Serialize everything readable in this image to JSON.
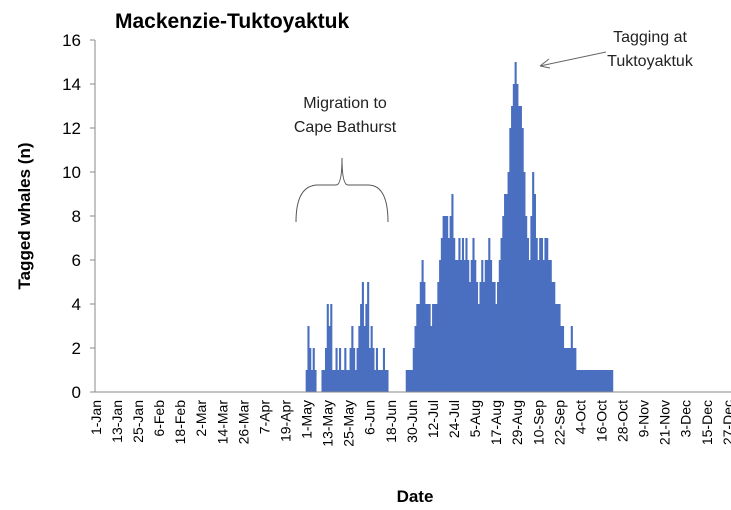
{
  "chart_data": {
    "type": "bar",
    "title": "Mackenzie-Tuktoyaktuk",
    "x_label": "Date",
    "y_label": "Tagged whales (n)",
    "annotations": [
      {
        "lines": [
          "Migration to",
          "Cape Bathurst"
        ]
      },
      {
        "lines": [
          "Tagging at",
          "Tuktoyaktuk"
        ]
      }
    ],
    "color": "#4a6fc0",
    "ylim": [
      0,
      16
    ],
    "yticks": [
      0,
      2,
      4,
      6,
      8,
      10,
      12,
      14,
      16
    ],
    "categories": [
      "1-Jan",
      null,
      null,
      null,
      null,
      null,
      null,
      null,
      null,
      null,
      null,
      null,
      "13-Jan",
      null,
      null,
      null,
      null,
      null,
      null,
      null,
      null,
      null,
      null,
      null,
      "25-Jan",
      null,
      null,
      null,
      null,
      null,
      null,
      null,
      null,
      null,
      null,
      null,
      "6-Feb",
      null,
      null,
      null,
      null,
      null,
      null,
      null,
      null,
      null,
      null,
      null,
      "18-Feb",
      null,
      null,
      null,
      null,
      null,
      null,
      null,
      null,
      null,
      null,
      null,
      "2-Mar",
      null,
      null,
      null,
      null,
      null,
      null,
      null,
      null,
      null,
      null,
      null,
      "14-Mar",
      null,
      null,
      null,
      null,
      null,
      null,
      null,
      null,
      null,
      null,
      null,
      "26-Mar",
      null,
      null,
      null,
      null,
      null,
      null,
      null,
      null,
      null,
      null,
      null,
      "7-Apr",
      null,
      null,
      null,
      null,
      null,
      null,
      null,
      null,
      null,
      null,
      null,
      "19-Apr",
      null,
      null,
      null,
      null,
      null,
      null,
      null,
      null,
      null,
      null,
      null,
      "1-May",
      null,
      null,
      null,
      null,
      null,
      null,
      null,
      null,
      null,
      null,
      null,
      "13-May",
      null,
      null,
      null,
      null,
      null,
      null,
      null,
      null,
      null,
      null,
      null,
      "25-May",
      null,
      null,
      null,
      null,
      null,
      null,
      null,
      null,
      null,
      null,
      null,
      "6-Jun",
      null,
      null,
      null,
      null,
      null,
      null,
      null,
      null,
      null,
      null,
      null,
      "18-Jun",
      null,
      null,
      null,
      null,
      null,
      null,
      null,
      null,
      null,
      null,
      null,
      "30-Jun",
      null,
      null,
      null,
      null,
      null,
      null,
      null,
      null,
      null,
      null,
      null,
      "12-Jul",
      null,
      null,
      null,
      null,
      null,
      null,
      null,
      null,
      null,
      null,
      null,
      "24-Jul",
      null,
      null,
      null,
      null,
      null,
      null,
      null,
      null,
      null,
      null,
      null,
      "5-Aug",
      null,
      null,
      null,
      null,
      null,
      null,
      null,
      null,
      null,
      null,
      null,
      "17-Aug",
      null,
      null,
      null,
      null,
      null,
      null,
      null,
      null,
      null,
      null,
      null,
      "29-Aug",
      null,
      null,
      null,
      null,
      null,
      null,
      null,
      null,
      null,
      null,
      null,
      "10-Sep",
      null,
      null,
      null,
      null,
      null,
      null,
      null,
      null,
      null,
      null,
      null,
      "22-Sep",
      null,
      null,
      null,
      null,
      null,
      null,
      null,
      null,
      null,
      null,
      null,
      "4-Oct",
      null,
      null,
      null,
      null,
      null,
      null,
      null,
      null,
      null,
      null,
      null,
      "16-Oct",
      null,
      null,
      null,
      null,
      null,
      null,
      null,
      null,
      null,
      null,
      null,
      "28-Oct",
      null,
      null,
      null,
      null,
      null,
      null,
      null,
      null,
      null,
      null,
      null,
      "9-Nov",
      null,
      null,
      null,
      null,
      null,
      null,
      null,
      null,
      null,
      null,
      null,
      "21-Nov",
      null,
      null,
      null,
      null,
      null,
      null,
      null,
      null,
      null,
      null,
      null,
      "3-Dec",
      null,
      null,
      null,
      null,
      null,
      null,
      null,
      null,
      null,
      null,
      null,
      "15-Dec",
      null,
      null,
      null,
      null,
      null,
      null,
      null,
      null,
      null,
      null,
      null,
      "27-Dec",
      null,
      null,
      null,
      null
    ],
    "values": [
      0,
      0,
      0,
      0,
      0,
      0,
      0,
      0,
      0,
      0,
      0,
      0,
      0,
      0,
      0,
      0,
      0,
      0,
      0,
      0,
      0,
      0,
      0,
      0,
      0,
      0,
      0,
      0,
      0,
      0,
      0,
      0,
      0,
      0,
      0,
      0,
      0,
      0,
      0,
      0,
      0,
      0,
      0,
      0,
      0,
      0,
      0,
      0,
      0,
      0,
      0,
      0,
      0,
      0,
      0,
      0,
      0,
      0,
      0,
      0,
      0,
      0,
      0,
      0,
      0,
      0,
      0,
      0,
      0,
      0,
      0,
      0,
      0,
      0,
      0,
      0,
      0,
      0,
      0,
      0,
      0,
      0,
      0,
      0,
      0,
      0,
      0,
      0,
      0,
      0,
      0,
      0,
      0,
      0,
      0,
      0,
      0,
      0,
      0,
      0,
      0,
      0,
      0,
      0,
      0,
      0,
      0,
      0,
      0,
      0,
      0,
      0,
      0,
      0,
      0,
      0,
      0,
      0,
      0,
      0,
      1,
      3,
      2,
      1,
      2,
      1,
      0,
      0,
      0,
      1,
      1,
      2,
      4,
      3,
      4,
      1,
      1,
      2,
      1,
      2,
      1,
      1,
      2,
      1,
      1,
      2,
      3,
      2,
      1,
      2,
      3,
      4,
      5,
      3,
      4,
      5,
      2,
      3,
      2,
      1,
      2,
      1,
      1,
      1,
      2,
      1,
      1,
      0,
      0,
      0,
      0,
      0,
      0,
      0,
      0,
      0,
      0,
      1,
      1,
      1,
      1,
      2,
      3,
      4,
      4,
      5,
      6,
      5,
      4,
      4,
      4,
      3,
      4,
      4,
      4,
      5,
      6,
      7,
      8,
      8,
      8,
      7,
      8,
      9,
      7,
      6,
      6,
      7,
      6,
      7,
      6,
      7,
      6,
      5,
      6,
      7,
      6,
      5,
      4,
      5,
      6,
      5,
      6,
      6,
      7,
      6,
      5,
      5,
      4,
      5,
      6,
      7,
      8,
      9,
      9,
      10,
      12,
      13,
      14,
      15,
      14,
      13,
      13,
      12,
      10,
      8,
      7,
      6,
      8,
      10,
      9,
      7,
      6,
      7,
      7,
      6,
      7,
      7,
      6,
      6,
      5,
      5,
      4,
      4,
      4,
      3,
      3,
      2,
      2,
      2,
      2,
      3,
      2,
      2,
      1,
      1,
      1,
      1,
      1,
      1,
      1,
      1,
      1,
      1,
      1,
      1,
      1,
      1,
      1,
      1,
      1,
      1,
      1,
      1,
      1,
      0,
      0,
      0,
      0,
      0,
      0,
      0,
      0,
      0,
      0,
      0,
      0,
      0,
      0,
      0,
      0,
      0,
      0,
      0,
      0,
      0,
      0,
      0,
      0,
      0,
      0,
      0,
      0,
      0,
      0,
      0,
      0,
      0,
      0,
      0,
      0,
      0,
      0,
      0,
      0,
      0,
      0,
      0,
      0,
      0,
      0,
      0,
      0,
      0,
      0,
      0,
      0,
      0,
      0,
      0,
      0,
      0,
      0,
      0,
      0,
      0,
      0,
      0,
      0,
      0,
      0,
      0,
      0,
      0,
      0
    ]
  }
}
